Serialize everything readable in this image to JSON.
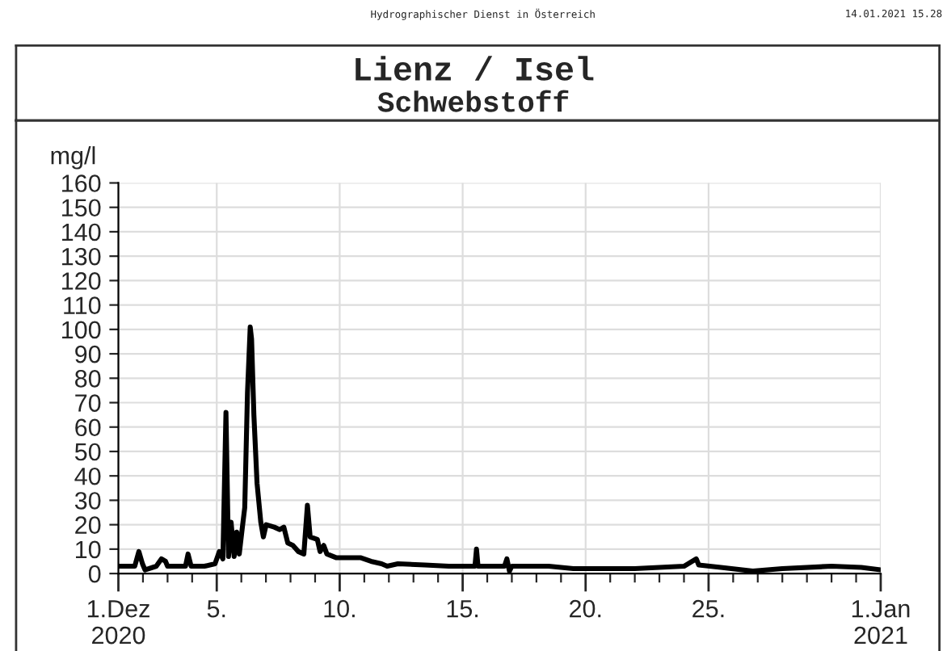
{
  "chart_data": {
    "type": "line",
    "title": "Lienz / Isel",
    "subtitle": "Schwebstoff",
    "ylabel": "mg/l",
    "annotations": [
      "Hydrographischer Dienst in Österreich",
      "14.01.2021 15.28"
    ],
    "xlim": [
      "2020-12-01",
      "2021-01-01"
    ],
    "xticks": [
      {
        "value": "2020-12-01",
        "label": "1.Dez\n2020"
      },
      {
        "value": "2020-12-05",
        "label": "5."
      },
      {
        "value": "2020-12-10",
        "label": "10."
      },
      {
        "value": "2020-12-15",
        "label": "15."
      },
      {
        "value": "2020-12-20",
        "label": "20."
      },
      {
        "value": "2020-12-25",
        "label": "25."
      },
      {
        "value": "2021-01-01",
        "label": "1.Jan\n2021"
      }
    ],
    "ylim": [
      0,
      160
    ],
    "yticks": [
      0,
      10,
      20,
      30,
      40,
      50,
      60,
      70,
      80,
      90,
      100,
      110,
      120,
      130,
      140,
      150,
      160
    ],
    "grid": true,
    "legend": false,
    "marker": "none",
    "line_style": "solid",
    "series": [
      {
        "color": "#000000",
        "x": [
          "2020-12-01T00:00",
          "2020-12-01T16:00",
          "2020-12-01T20:00",
          "2020-12-01T23:30",
          "2020-12-02T02:00",
          "2020-12-02T13:00",
          "2020-12-02T18:00",
          "2020-12-02T22:00",
          "2020-12-03T00:00",
          "2020-12-03T17:30",
          "2020-12-03T20:00",
          "2020-12-03T23:00",
          "2020-12-04T12:00",
          "2020-12-04T22:20",
          "2020-12-05T02:30",
          "2020-12-05T06:00",
          "2020-12-05T09:00",
          "2020-12-05T11:30",
          "2020-12-05T14:00",
          "2020-12-05T17:00",
          "2020-12-05T19:30",
          "2020-12-05T22:00",
          "2020-12-06T00:45",
          "2020-12-06T03:20",
          "2020-12-06T06:00",
          "2020-12-06T08:40",
          "2020-12-06T10:00",
          "2020-12-06T12:15",
          "2020-12-06T15:20",
          "2020-12-06T19:00",
          "2020-12-06T21:30",
          "2020-12-07T00:15",
          "2020-12-07T08:10",
          "2020-12-07T13:30",
          "2020-12-07T17:30",
          "2020-12-07T21:20",
          "2020-12-08T02:20",
          "2020-12-08T07:40",
          "2020-12-08T13:00",
          "2020-12-08T16:30",
          "2020-12-08T19:10",
          "2020-12-09T02:10",
          "2020-12-09T04:50",
          "2020-12-09T08:25",
          "2020-12-09T11:30",
          "2020-12-09T20:25",
          "2020-12-10T20:10",
          "2020-12-11T06:30",
          "2020-12-11T16:50",
          "2020-12-11T22:20",
          "2020-12-12T08:50",
          "2020-12-13T11:00",
          "2020-12-14T10:30",
          "2020-12-15T12:00",
          "2020-12-15T13:30",
          "2020-12-15T15:00",
          "2020-12-16T16:50",
          "2020-12-16T19:10",
          "2020-12-16T21:40",
          "2020-12-17T00:00",
          "2020-12-18T12:00",
          "2020-12-19T12:00",
          "2020-12-22T00:00",
          "2020-12-24T00:00",
          "2020-12-24T12:00",
          "2020-12-24T14:25",
          "2020-12-25T12:00",
          "2020-12-26T19:10",
          "2020-12-28T00:00",
          "2020-12-30T00:00",
          "2020-12-31T05:00",
          "2021-01-01T00:00"
        ],
        "values": [
          3,
          3,
          9,
          4,
          1.5,
          3,
          6,
          5,
          3,
          3,
          8,
          3,
          3,
          4,
          9,
          6,
          66,
          7,
          21,
          7,
          17,
          8,
          18,
          27,
          74,
          101,
          96,
          65,
          37,
          21,
          15,
          20,
          19,
          18,
          19,
          12.5,
          11.5,
          9,
          8,
          28,
          15,
          14,
          9,
          11.5,
          8,
          6.5,
          6.5,
          5,
          4,
          3,
          4,
          3.5,
          3,
          3,
          10,
          3,
          3,
          6,
          1,
          3,
          3,
          2,
          2,
          3,
          6,
          3.5,
          2.5,
          1,
          2,
          3,
          2.5,
          1.5
        ]
      }
    ]
  }
}
